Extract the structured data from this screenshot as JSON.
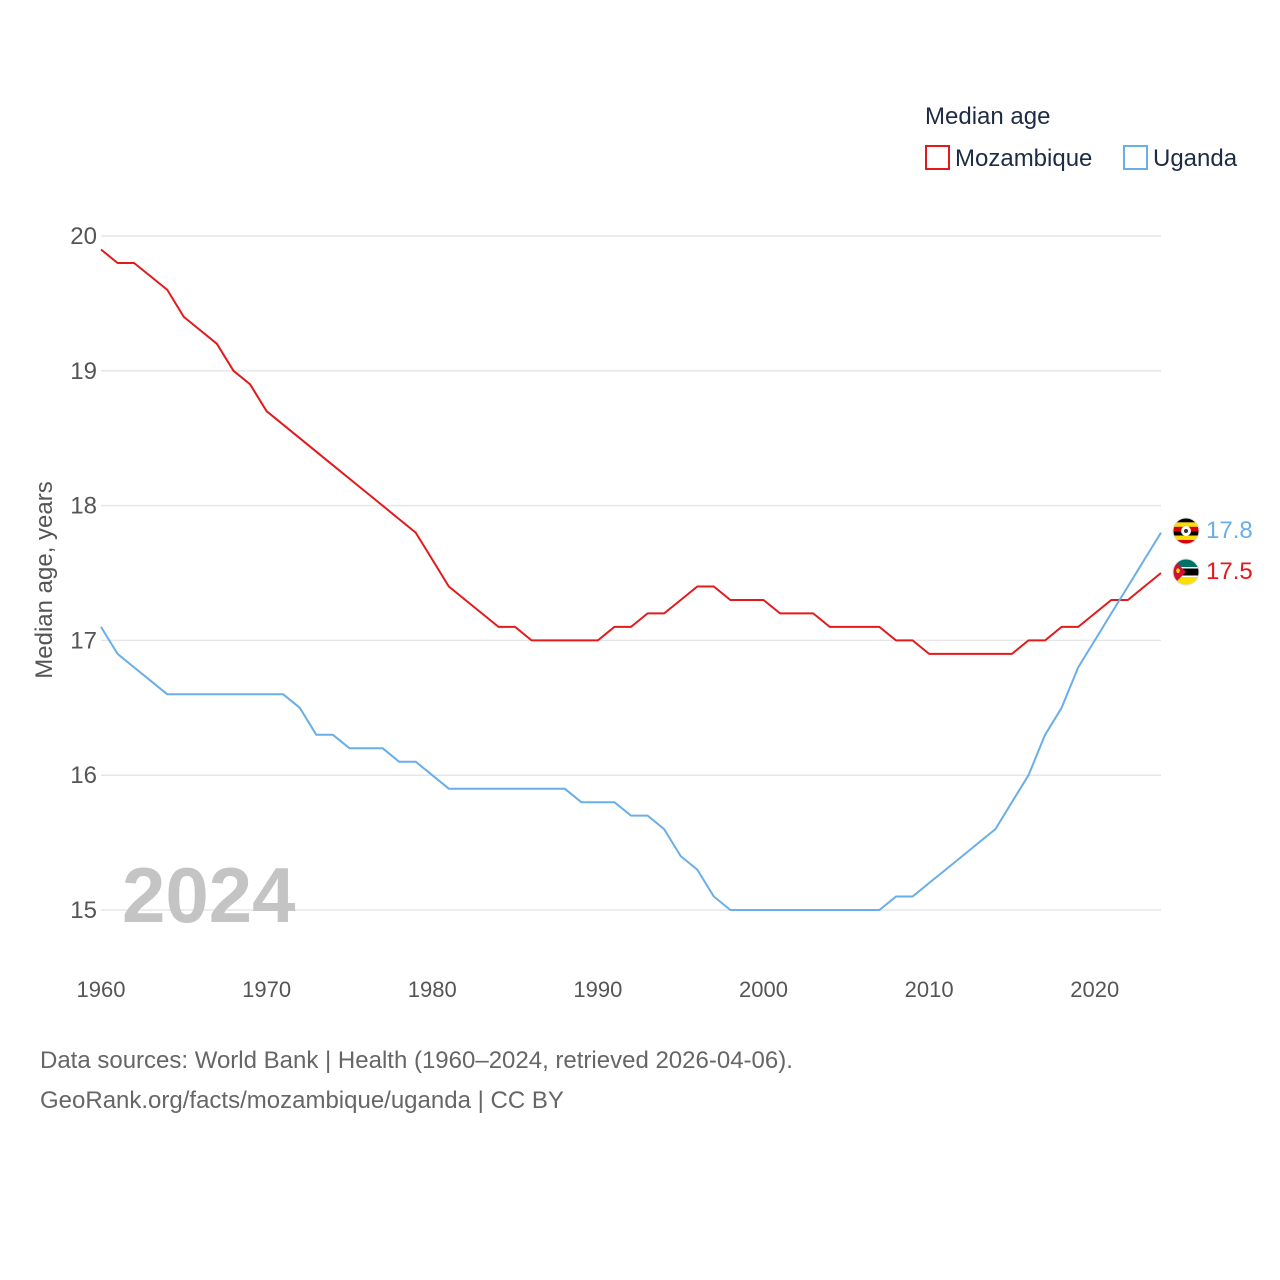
{
  "legend": {
    "title": "Median age",
    "items": [
      {
        "name": "Mozambique",
        "color": "#e31a1c"
      },
      {
        "name": "Uganda",
        "color": "#6aaee8"
      }
    ]
  },
  "year_label": "2024",
  "end_labels": {
    "uganda": "17.8",
    "mozambique": "17.5"
  },
  "footer": {
    "line1": "Data sources: World Bank | Health (1960–2024, retrieved 2026-04-06).",
    "line2": "GeoRank.org/facts/mozambique/uganda | CC BY"
  },
  "chart_data": {
    "type": "line",
    "title": "Median age",
    "xlabel": "",
    "ylabel": "Median age, years",
    "xlim": [
      1960,
      2024
    ],
    "ylim": [
      15,
      20
    ],
    "x_ticks": [
      1960,
      1970,
      1980,
      1990,
      2000,
      2010,
      2020
    ],
    "y_ticks": [
      15,
      16,
      17,
      18,
      19,
      20
    ],
    "grid": true,
    "legend_position": "top-right",
    "x": [
      1960,
      1961,
      1962,
      1963,
      1964,
      1965,
      1966,
      1967,
      1968,
      1969,
      1970,
      1971,
      1972,
      1973,
      1974,
      1975,
      1976,
      1977,
      1978,
      1979,
      1980,
      1981,
      1982,
      1983,
      1984,
      1985,
      1986,
      1987,
      1988,
      1989,
      1990,
      1991,
      1992,
      1993,
      1994,
      1995,
      1996,
      1997,
      1998,
      1999,
      2000,
      2001,
      2002,
      2003,
      2004,
      2005,
      2006,
      2007,
      2008,
      2009,
      2010,
      2011,
      2012,
      2013,
      2014,
      2015,
      2016,
      2017,
      2018,
      2019,
      2020,
      2021,
      2022,
      2023,
      2024
    ],
    "series": [
      {
        "name": "Mozambique",
        "color": "#e31a1c",
        "values": [
          19.9,
          19.8,
          19.8,
          19.7,
          19.6,
          19.4,
          19.3,
          19.2,
          19.0,
          18.9,
          18.7,
          18.6,
          18.5,
          18.4,
          18.3,
          18.2,
          18.1,
          18.0,
          17.9,
          17.8,
          17.6,
          17.4,
          17.3,
          17.2,
          17.1,
          17.1,
          17.0,
          17.0,
          17.0,
          17.0,
          17.0,
          17.1,
          17.1,
          17.2,
          17.2,
          17.3,
          17.4,
          17.4,
          17.3,
          17.3,
          17.3,
          17.2,
          17.2,
          17.2,
          17.1,
          17.1,
          17.1,
          17.1,
          17.0,
          17.0,
          16.9,
          16.9,
          16.9,
          16.9,
          16.9,
          16.9,
          17.0,
          17.0,
          17.1,
          17.1,
          17.2,
          17.3,
          17.3,
          17.4,
          17.5
        ]
      },
      {
        "name": "Uganda",
        "color": "#6aaee8",
        "values": [
          17.1,
          16.9,
          16.8,
          16.7,
          16.6,
          16.6,
          16.6,
          16.6,
          16.6,
          16.6,
          16.6,
          16.6,
          16.5,
          16.3,
          16.3,
          16.2,
          16.2,
          16.2,
          16.1,
          16.1,
          16.0,
          15.9,
          15.9,
          15.9,
          15.9,
          15.9,
          15.9,
          15.9,
          15.9,
          15.8,
          15.8,
          15.8,
          15.7,
          15.7,
          15.6,
          15.4,
          15.3,
          15.1,
          15.0,
          15.0,
          15.0,
          15.0,
          15.0,
          15.0,
          15.0,
          15.0,
          15.0,
          15.0,
          15.1,
          15.1,
          15.2,
          15.3,
          15.4,
          15.5,
          15.6,
          15.8,
          16.0,
          16.3,
          16.5,
          16.8,
          17.0,
          17.2,
          17.4,
          17.6,
          17.8
        ]
      }
    ]
  }
}
